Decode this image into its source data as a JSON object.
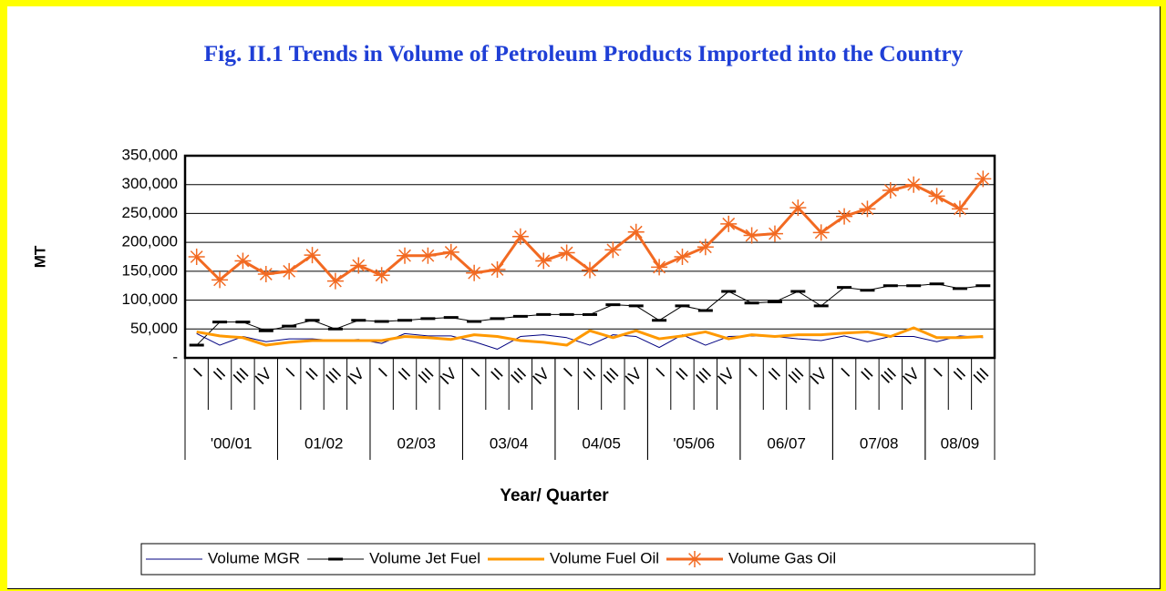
{
  "chart_data": {
    "type": "line",
    "title": "Fig. II.1 Trends in Volume of Petroleum Products Imported into the Country",
    "y_label": "MT",
    "x_label": "Year/ Quarter",
    "categories": [
      "I",
      "II",
      "III",
      "IV",
      "I",
      "II",
      "III",
      "IV",
      "I",
      "II",
      "III",
      "IV",
      "I",
      "II",
      "III",
      "IV",
      "I",
      "II",
      "III",
      "IV",
      "I",
      "II",
      "III",
      "IV",
      "I",
      "II",
      "III",
      "IV",
      "I",
      "II",
      "III",
      "IV",
      "I",
      "II",
      "III"
    ],
    "groups": [
      {
        "label": "'00/01",
        "span": 4
      },
      {
        "label": "01/02",
        "span": 4
      },
      {
        "label": "02/03",
        "span": 4
      },
      {
        "label": "03/04",
        "span": 4
      },
      {
        "label": "04/05",
        "span": 4
      },
      {
        "label": "'05/06",
        "span": 4
      },
      {
        "label": "06/07",
        "span": 4
      },
      {
        "label": "07/08",
        "span": 4
      },
      {
        "label": "08/09",
        "span": 3
      }
    ],
    "ylim": [
      0,
      350000
    ],
    "yticks": [
      {
        "value": 0,
        "label": "-"
      },
      {
        "value": 50000,
        "label": "50,000"
      },
      {
        "value": 100000,
        "label": "100,000"
      },
      {
        "value": 150000,
        "label": "150,000"
      },
      {
        "value": 200000,
        "label": "200,000"
      },
      {
        "value": 250000,
        "label": "250,000"
      },
      {
        "value": 300000,
        "label": "300,000"
      },
      {
        "value": 350000,
        "label": "350,000"
      }
    ],
    "grid": true,
    "legend": "bottom",
    "series": [
      {
        "name": "Volume MGR",
        "color": "#000080",
        "line_width": 1,
        "marker": null,
        "values": [
          42000,
          22000,
          37000,
          28000,
          33000,
          33000,
          30000,
          32000,
          25000,
          42000,
          38000,
          38000,
          28000,
          15000,
          37000,
          40000,
          35000,
          22000,
          40000,
          37000,
          18000,
          40000,
          22000,
          37000,
          38000,
          37000,
          33000,
          30000,
          38000,
          28000,
          37000,
          37000,
          28000,
          38000,
          35000
        ]
      },
      {
        "name": "Volume Jet Fuel",
        "color": "#000000",
        "line_width": 1,
        "marker": "dash",
        "values": [
          22000,
          62000,
          62000,
          47000,
          55000,
          65000,
          50000,
          65000,
          63000,
          65000,
          68000,
          70000,
          63000,
          68000,
          72000,
          75000,
          75000,
          75000,
          92000,
          90000,
          65000,
          90000,
          82000,
          115000,
          95000,
          97000,
          115000,
          90000,
          122000,
          117000,
          125000,
          125000,
          128000,
          120000,
          125000
        ]
      },
      {
        "name": "Volume Fuel Oil",
        "color": "#ff9900",
        "line_width": 3,
        "marker": null,
        "values": [
          45000,
          38000,
          35000,
          22000,
          27000,
          30000,
          30000,
          30000,
          30000,
          37000,
          35000,
          32000,
          40000,
          37000,
          30000,
          27000,
          22000,
          47000,
          35000,
          47000,
          33000,
          38000,
          45000,
          33000,
          40000,
          37000,
          40000,
          40000,
          43000,
          45000,
          37000,
          52000,
          35000,
          35000,
          37000
        ]
      },
      {
        "name": "Volume Gas Oil",
        "color": "#f26a22",
        "line_width": 3,
        "marker": "star",
        "values": [
          175000,
          135000,
          168000,
          145000,
          150000,
          178000,
          133000,
          160000,
          143000,
          177000,
          177000,
          183000,
          147000,
          153000,
          210000,
          168000,
          182000,
          152000,
          187000,
          218000,
          157000,
          175000,
          192000,
          232000,
          212000,
          215000,
          260000,
          217000,
          245000,
          258000,
          290000,
          300000,
          280000,
          258000,
          310000
        ]
      }
    ]
  }
}
